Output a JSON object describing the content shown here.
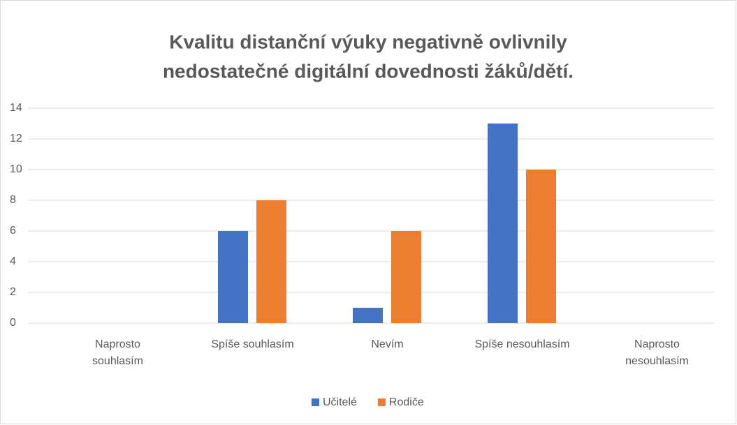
{
  "chart_data": {
    "type": "bar",
    "title": [
      "Kvalitu distanční výuky negativně ovlivnily",
      "nedostatečné digitální dovednosti žáků/dětí."
    ],
    "categories": [
      "Naprosto souhlasím",
      "Spíše souhlasím",
      "Nevím",
      "Spíše nesouhlasím",
      "Naprosto nesouhlasím"
    ],
    "series": [
      {
        "name": "Učitelé",
        "color": "#4472c4",
        "values": [
          0,
          6,
          1,
          13,
          0
        ]
      },
      {
        "name": "Rodiče",
        "color": "#ed7d31",
        "values": [
          0,
          8,
          6,
          10,
          0
        ]
      }
    ],
    "ylim": [
      0,
      14
    ],
    "yticks": [
      0,
      2,
      4,
      6,
      8,
      10,
      12,
      14
    ],
    "grid": true,
    "legend": "bottom"
  }
}
